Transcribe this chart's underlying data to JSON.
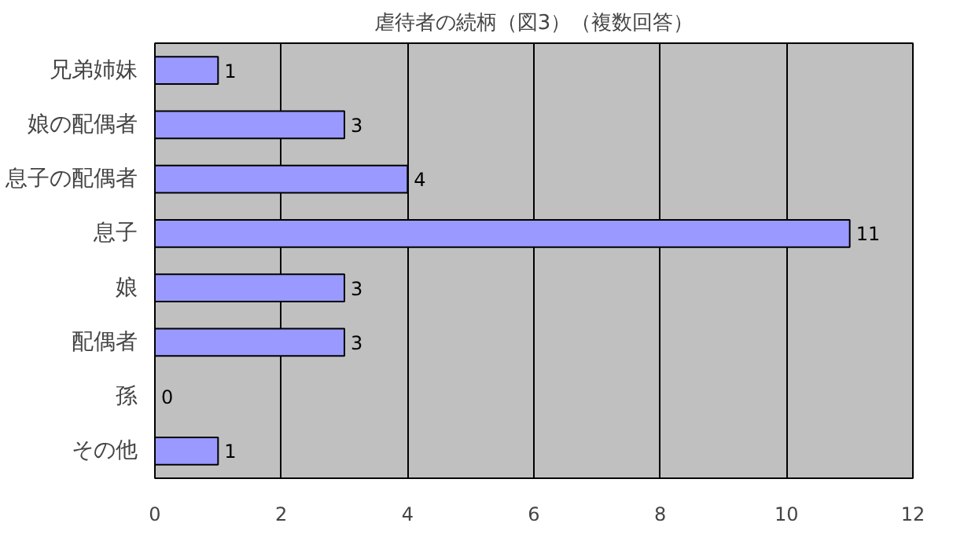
{
  "chart_data": {
    "type": "bar",
    "orientation": "horizontal",
    "title": "虐待者の続柄（図3）（複数回答）",
    "categories": [
      "兄弟姉妹",
      "娘の配偶者",
      "息子の配偶者",
      "息子",
      "娘",
      "配偶者",
      "孫",
      "その他"
    ],
    "values": [
      1,
      3,
      4,
      11,
      3,
      3,
      0,
      1
    ],
    "color": "#9999ff",
    "xlim": [
      0,
      12
    ],
    "xticks": [
      0,
      2,
      4,
      6,
      8,
      10,
      12
    ],
    "grid": "x",
    "data_labels": true
  }
}
